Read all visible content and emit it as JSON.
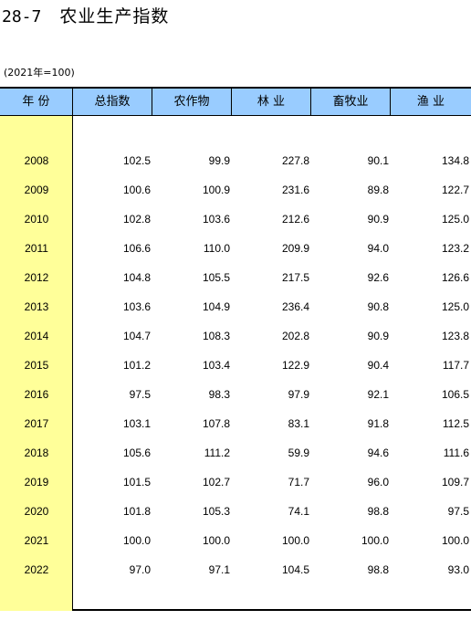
{
  "title": {
    "number": "28-7",
    "name": "农业生产指数"
  },
  "unit_note": "(2021年=100)",
  "colors": {
    "header_bg": "#99ccff",
    "year_col_bg": "#ffff99"
  },
  "headers": [
    "年 份",
    "总指数",
    "农作物",
    "林 业",
    "畜牧业",
    "渔 业"
  ],
  "rows": [
    [
      "2008",
      "102.5",
      "99.9",
      "227.8",
      "90.1",
      "134.8"
    ],
    [
      "2009",
      "100.6",
      "100.9",
      "231.6",
      "89.8",
      "122.7"
    ],
    [
      "2010",
      "102.8",
      "103.6",
      "212.6",
      "90.9",
      "125.0"
    ],
    [
      "2011",
      "106.6",
      "110.0",
      "209.9",
      "94.0",
      "123.2"
    ],
    [
      "2012",
      "104.8",
      "105.5",
      "217.5",
      "92.6",
      "126.6"
    ],
    [
      "2013",
      "103.6",
      "104.9",
      "236.4",
      "90.8",
      "125.0"
    ],
    [
      "2014",
      "104.7",
      "108.3",
      "202.8",
      "90.9",
      "123.8"
    ],
    [
      "2015",
      "101.2",
      "103.4",
      "122.9",
      "90.4",
      "117.7"
    ],
    [
      "2016",
      "97.5",
      "98.3",
      "97.9",
      "92.1",
      "106.5"
    ],
    [
      "2017",
      "103.1",
      "107.8",
      "83.1",
      "91.8",
      "112.5"
    ],
    [
      "2018",
      "105.6",
      "111.2",
      "59.9",
      "94.6",
      "111.6"
    ],
    [
      "2019",
      "101.5",
      "102.7",
      "71.7",
      "96.0",
      "109.7"
    ],
    [
      "2020",
      "101.8",
      "105.3",
      "74.1",
      "98.8",
      "97.5"
    ],
    [
      "2021",
      "100.0",
      "100.0",
      "100.0",
      "100.0",
      "100.0"
    ],
    [
      "2022",
      "97.0",
      "97.1",
      "104.5",
      "98.8",
      "93.0"
    ]
  ]
}
